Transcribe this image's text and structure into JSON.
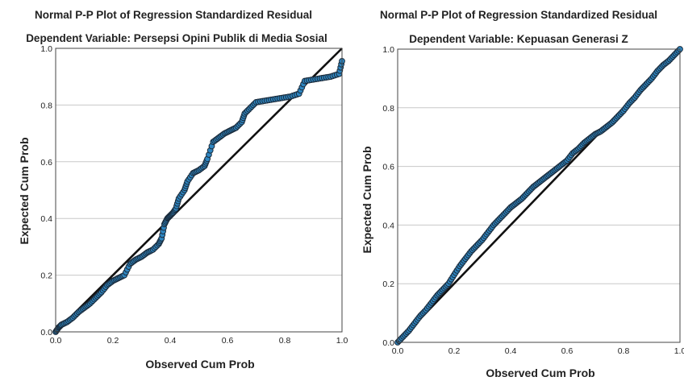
{
  "chart_data": [
    {
      "type": "scatter",
      "title": "Normal P-P Plot of Regression Standardized Residual",
      "subtitle": "Dependent Variable: Persepsi Opini Publik di Media Sosial",
      "xlabel": "Observed Cum Prob",
      "ylabel": "Expected Cum Prob",
      "xlim": [
        0,
        1
      ],
      "ylim": [
        0,
        1
      ],
      "xticks": [
        "0.0",
        "0.2",
        "0.4",
        "0.6",
        "0.8",
        "1.0"
      ],
      "yticks": [
        "0.0",
        "0.2",
        "0.4",
        "0.6",
        "0.8",
        "1.0"
      ],
      "grid": "horizontal",
      "reference_line": [
        [
          0,
          0
        ],
        [
          1,
          1
        ]
      ],
      "point_color": "#2e86c1",
      "point_edge_color": "#1a2a3a",
      "series": [
        {
          "points": [
            [
              0.0,
              0.0
            ],
            [
              0.01,
              0.015
            ],
            [
              0.02,
              0.025
            ],
            [
              0.04,
              0.035
            ],
            [
              0.06,
              0.05
            ],
            [
              0.08,
              0.07
            ],
            [
              0.1,
              0.085
            ],
            [
              0.12,
              0.1
            ],
            [
              0.14,
              0.12
            ],
            [
              0.16,
              0.14
            ],
            [
              0.18,
              0.165
            ],
            [
              0.2,
              0.18
            ],
            [
              0.22,
              0.19
            ],
            [
              0.24,
              0.2
            ],
            [
              0.26,
              0.24
            ],
            [
              0.28,
              0.255
            ],
            [
              0.3,
              0.265
            ],
            [
              0.32,
              0.28
            ],
            [
              0.34,
              0.29
            ],
            [
              0.36,
              0.31
            ],
            [
              0.37,
              0.33
            ],
            [
              0.38,
              0.38
            ],
            [
              0.39,
              0.4
            ],
            [
              0.4,
              0.41
            ],
            [
              0.41,
              0.42
            ],
            [
              0.42,
              0.435
            ],
            [
              0.43,
              0.47
            ],
            [
              0.45,
              0.5
            ],
            [
              0.46,
              0.53
            ],
            [
              0.48,
              0.56
            ],
            [
              0.5,
              0.57
            ],
            [
              0.52,
              0.585
            ],
            [
              0.53,
              0.61
            ],
            [
              0.55,
              0.67
            ],
            [
              0.57,
              0.685
            ],
            [
              0.59,
              0.7
            ],
            [
              0.61,
              0.71
            ],
            [
              0.63,
              0.72
            ],
            [
              0.65,
              0.74
            ],
            [
              0.66,
              0.77
            ],
            [
              0.68,
              0.79
            ],
            [
              0.7,
              0.81
            ],
            [
              0.73,
              0.815
            ],
            [
              0.76,
              0.82
            ],
            [
              0.79,
              0.825
            ],
            [
              0.82,
              0.83
            ],
            [
              0.85,
              0.84
            ],
            [
              0.87,
              0.885
            ],
            [
              0.9,
              0.89
            ],
            [
              0.93,
              0.895
            ],
            [
              0.96,
              0.9
            ],
            [
              0.99,
              0.91
            ],
            [
              1.0,
              0.955
            ]
          ]
        }
      ]
    },
    {
      "type": "scatter",
      "title": "Normal P-P Plot of Regression Standardized Residual",
      "subtitle": "Dependent Variable: Kepuasan Generasi Z",
      "xlabel": "Observed Cum Prob",
      "ylabel": "Expected Cum Prob",
      "xlim": [
        0,
        1
      ],
      "ylim": [
        0,
        1
      ],
      "xticks": [
        "0.0",
        "0.2",
        "0.4",
        "0.6",
        "0.8",
        "1.0"
      ],
      "yticks": [
        "0.0",
        "0.2",
        "0.4",
        "0.6",
        "0.8",
        "1.0"
      ],
      "grid": "horizontal",
      "reference_line": [
        [
          0,
          0
        ],
        [
          1,
          1
        ]
      ],
      "point_color": "#2e86c1",
      "point_edge_color": "#1a2a3a",
      "series": [
        {
          "points": [
            [
              0.0,
              0.0
            ],
            [
              0.02,
              0.02
            ],
            [
              0.04,
              0.04
            ],
            [
              0.06,
              0.065
            ],
            [
              0.08,
              0.09
            ],
            [
              0.1,
              0.11
            ],
            [
              0.12,
              0.135
            ],
            [
              0.14,
              0.16
            ],
            [
              0.16,
              0.18
            ],
            [
              0.18,
              0.2
            ],
            [
              0.2,
              0.23
            ],
            [
              0.22,
              0.26
            ],
            [
              0.24,
              0.285
            ],
            [
              0.26,
              0.31
            ],
            [
              0.28,
              0.33
            ],
            [
              0.3,
              0.35
            ],
            [
              0.32,
              0.375
            ],
            [
              0.34,
              0.4
            ],
            [
              0.36,
              0.42
            ],
            [
              0.38,
              0.44
            ],
            [
              0.4,
              0.46
            ],
            [
              0.42,
              0.475
            ],
            [
              0.44,
              0.49
            ],
            [
              0.46,
              0.51
            ],
            [
              0.48,
              0.53
            ],
            [
              0.5,
              0.545
            ],
            [
              0.52,
              0.56
            ],
            [
              0.54,
              0.575
            ],
            [
              0.56,
              0.59
            ],
            [
              0.58,
              0.605
            ],
            [
              0.6,
              0.62
            ],
            [
              0.62,
              0.645
            ],
            [
              0.64,
              0.66
            ],
            [
              0.66,
              0.68
            ],
            [
              0.68,
              0.695
            ],
            [
              0.7,
              0.71
            ],
            [
              0.72,
              0.72
            ],
            [
              0.74,
              0.735
            ],
            [
              0.76,
              0.75
            ],
            [
              0.78,
              0.77
            ],
            [
              0.8,
              0.79
            ],
            [
              0.82,
              0.815
            ],
            [
              0.84,
              0.835
            ],
            [
              0.86,
              0.86
            ],
            [
              0.88,
              0.88
            ],
            [
              0.9,
              0.9
            ],
            [
              0.92,
              0.925
            ],
            [
              0.94,
              0.945
            ],
            [
              0.96,
              0.96
            ],
            [
              0.98,
              0.98
            ],
            [
              1.0,
              1.0
            ]
          ]
        }
      ]
    }
  ]
}
